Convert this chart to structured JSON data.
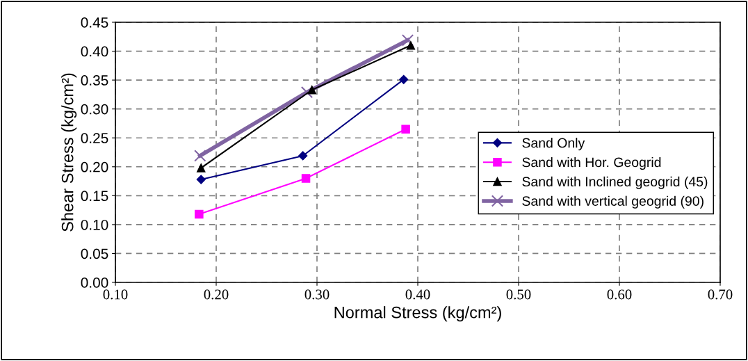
{
  "chart_data": {
    "type": "line",
    "xlabel": "Normal Stress (kg/cm²)",
    "ylabel": "Shear Stress (kg/cm²)",
    "xlim": [
      0.1,
      0.7
    ],
    "xticks": [
      {
        "value": 0.1,
        "label": "0.10"
      },
      {
        "value": 0.2,
        "label": "0.20"
      },
      {
        "value": 0.3,
        "label": "0.30"
      },
      {
        "value": 0.4,
        "label": "0.40"
      },
      {
        "value": 0.5,
        "label": "0.50"
      },
      {
        "value": 0.6,
        "label": "0.60"
      },
      {
        "value": 0.7,
        "label": "0.70"
      }
    ],
    "ylim": [
      0,
      0.45
    ],
    "yticks": [
      {
        "value": 0,
        "label": "0.00"
      },
      {
        "value": 0.05,
        "label": "0.05"
      },
      {
        "value": 0.1,
        "label": "0.10"
      },
      {
        "value": 0.15,
        "label": "0.15"
      },
      {
        "value": 0.2,
        "label": "0.20"
      },
      {
        "value": 0.25,
        "label": "0.25"
      },
      {
        "value": 0.3,
        "label": "0.30"
      },
      {
        "value": 0.35,
        "label": "0.35"
      },
      {
        "value": 0.4,
        "label": "0.40"
      },
      {
        "value": 0.45,
        "label": "0.45"
      }
    ],
    "grid": true,
    "legend": "right",
    "line_style": "solid",
    "series": [
      {
        "name": "Sand Only",
        "color": "#000080",
        "marker": "diamond",
        "x": [
          0.185,
          0.286,
          0.386
        ],
        "values": [
          0.178,
          0.219,
          0.351
        ]
      },
      {
        "name": "Sand with Hor. Geogrid",
        "color": "#ff00ff",
        "marker": "square",
        "x": [
          0.183,
          0.289,
          0.388
        ],
        "values": [
          0.118,
          0.18,
          0.265
        ]
      },
      {
        "name": "Sand with Inclined geogrid (45)",
        "color": "#000000",
        "marker": "triangle",
        "x": [
          0.185,
          0.295,
          0.393
        ],
        "values": [
          0.198,
          0.333,
          0.41
        ]
      },
      {
        "name": "Sand with vertical geogrid (90)",
        "color": "#8064a2",
        "marker": "cross",
        "x": [
          0.184,
          0.29,
          0.39
        ],
        "values": [
          0.219,
          0.329,
          0.419
        ]
      }
    ]
  }
}
